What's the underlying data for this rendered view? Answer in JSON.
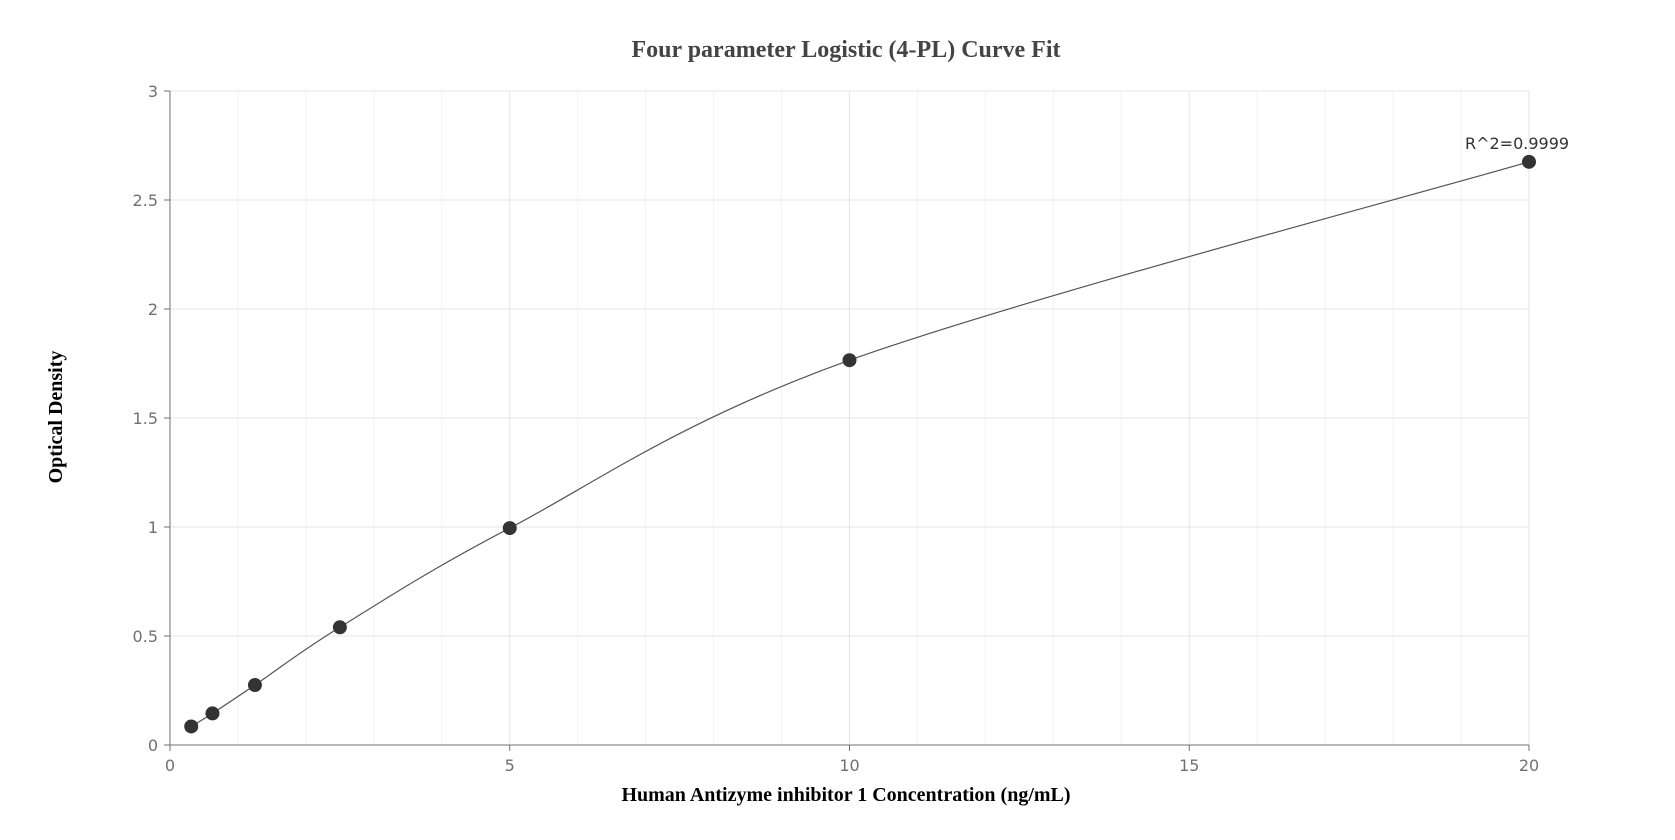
{
  "chart_data": {
    "type": "scatter",
    "title": "Four parameter Logistic (4-PL) Curve Fit",
    "xlabel": "Human Antizyme inhibitor 1 Concentration (ng/mL)",
    "ylabel": "Optical Density",
    "xlim": [
      0,
      20
    ],
    "ylim": [
      0,
      3
    ],
    "x_ticks": [
      "0",
      "5",
      "10",
      "15",
      "20"
    ],
    "y_ticks": [
      "0",
      "0.5",
      "1",
      "1.5",
      "2",
      "2.5",
      "3"
    ],
    "x_minor_step": 1,
    "y_minor_step": 0.5,
    "grid": true,
    "series": [
      {
        "points": [
          {
            "x": 0.3125,
            "y": 0.085
          },
          {
            "x": 0.625,
            "y": 0.145
          },
          {
            "x": 1.25,
            "y": 0.275
          },
          {
            "x": 2.5,
            "y": 0.54
          },
          {
            "x": 5,
            "y": 0.995
          },
          {
            "x": 10,
            "y": 1.765
          },
          {
            "x": 20,
            "y": 2.675
          }
        ]
      }
    ],
    "annotation": {
      "text": "R^2=0.9999",
      "x": 20,
      "y": 2.675
    },
    "colors": {
      "points": "#333333",
      "curve": "#555555",
      "axis": "#6e7079",
      "grid_major": "#e0e6f1",
      "grid_minor": "#f1f3f7"
    }
  }
}
